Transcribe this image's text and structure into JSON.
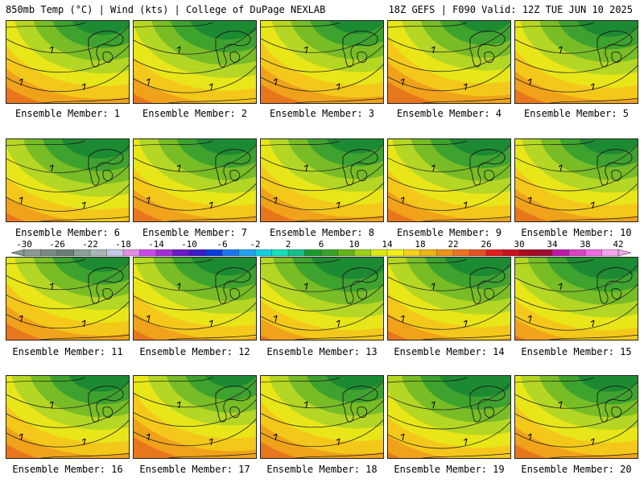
{
  "header": {
    "title_left": "850mb Temp (°C) | Wind (kts) | College of DuPage NEXLAB",
    "title_right": "18Z GEFS | F090 Valid: 12Z TUE JUN 10 2025"
  },
  "members": [
    {
      "label": "Ensemble Member: 1",
      "level": 0.55
    },
    {
      "label": "Ensemble Member: 2",
      "level": 0.7
    },
    {
      "label": "Ensemble Member: 3",
      "level": 0.5
    },
    {
      "label": "Ensemble Member: 4",
      "level": 0.45
    },
    {
      "label": "Ensemble Member: 5",
      "level": 0.6
    },
    {
      "label": "Ensemble Member: 6",
      "level": 0.72
    },
    {
      "label": "Ensemble Member: 7",
      "level": 0.6
    },
    {
      "label": "Ensemble Member: 8",
      "level": 0.55
    },
    {
      "label": "Ensemble Member: 9",
      "level": 0.62
    },
    {
      "label": "Ensemble Member: 10",
      "level": 0.58
    },
    {
      "label": "Ensemble Member: 11",
      "level": 0.55
    },
    {
      "label": "Ensemble Member: 12",
      "level": 0.68
    },
    {
      "label": "Ensemble Member: 13",
      "level": 0.8
    },
    {
      "label": "Ensemble Member: 14",
      "level": 0.7
    },
    {
      "label": "Ensemble Member: 15",
      "level": 0.8
    },
    {
      "label": "Ensemble Member: 16",
      "level": 0.6
    },
    {
      "label": "Ensemble Member: 17",
      "level": 0.45
    },
    {
      "label": "Ensemble Member: 18",
      "level": 0.55
    },
    {
      "label": "Ensemble Member: 19",
      "level": 0.78
    },
    {
      "label": "Ensemble Member: 20",
      "level": 0.6
    }
  ],
  "colorbar": {
    "labels": [
      "-30",
      "-26",
      "-22",
      "-18",
      "-14",
      "-10",
      "-6",
      "-2",
      "2",
      "6",
      "10",
      "14",
      "18",
      "22",
      "26",
      "30",
      "34",
      "38",
      "42"
    ],
    "colors": [
      "#8c9a94",
      "#7a8a84",
      "#6b7b75",
      "#8d9f99",
      "#a9b6b3",
      "#c8c8e6",
      "#e18ee3",
      "#c84ae6",
      "#a22bd8",
      "#6a18c8",
      "#3c1cc8",
      "#0a3cdc",
      "#1876ee",
      "#22a2ee",
      "#12cfe2",
      "#18e0b8",
      "#12c28a",
      "#1a9a2e",
      "#3aa22a",
      "#62b41a",
      "#9cd014",
      "#dcea12",
      "#f4f018",
      "#f4d21a",
      "#f0b412",
      "#ee9418",
      "#ec7224",
      "#e85026",
      "#e21e1e",
      "#c81420",
      "#a80c20",
      "#a00c30",
      "#c018a8",
      "#da40c4",
      "#f06ae0",
      "#f4a4ee"
    ]
  }
}
